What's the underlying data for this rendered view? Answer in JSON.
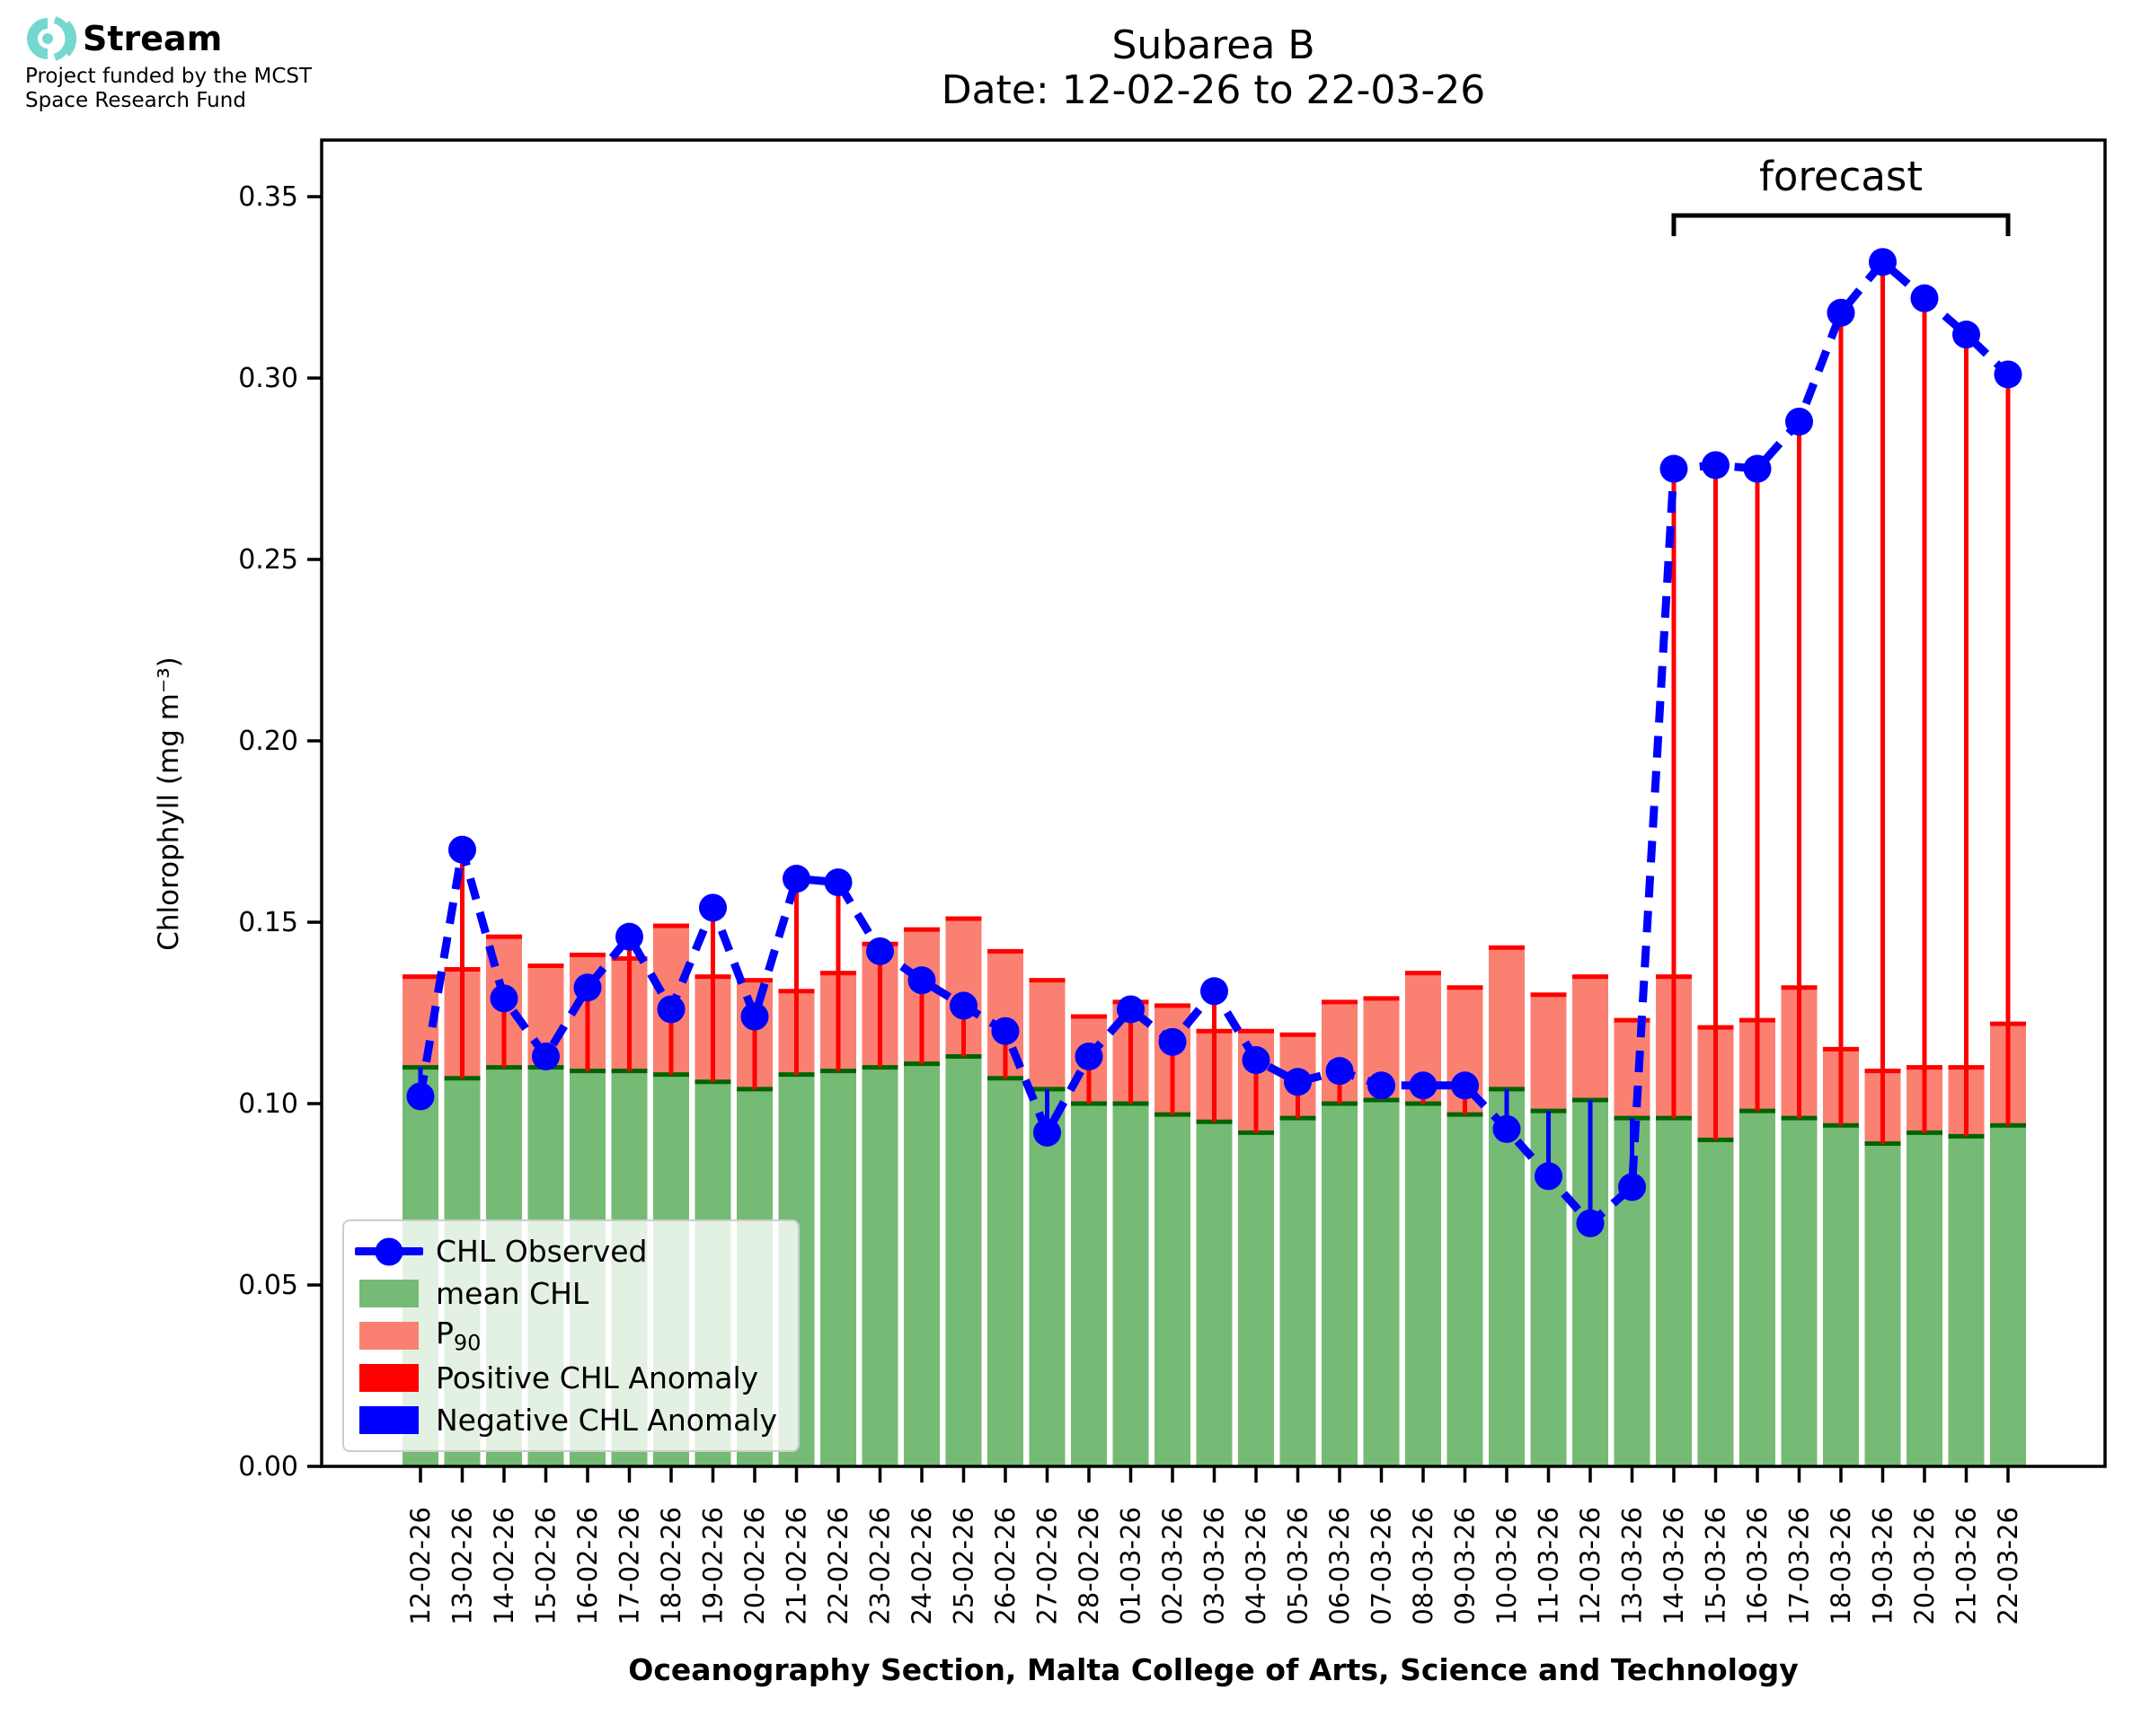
{
  "logo": {
    "brand": "Stream",
    "funding_line1": "Project funded by the MCST",
    "funding_line2": "Space Research Fund",
    "icon_color": "#74d8cf"
  },
  "title": {
    "line1": "Subarea B",
    "line2": "Date: 12-02-26 to 22-03-26"
  },
  "forecast_label": "forecast",
  "axes": {
    "ylabel": "Chlorophyll (mg m⁻³)",
    "xlabel": "Oceanography Section, Malta College of Arts, Science and Technology",
    "yticks": [
      "0.00",
      "0.05",
      "0.10",
      "0.15",
      "0.20",
      "0.25",
      "0.30",
      "0.35"
    ]
  },
  "legend": {
    "items": [
      {
        "label": "CHL Observed",
        "type": "line-dot",
        "color": "#0000ff"
      },
      {
        "label": "mean CHL",
        "type": "patch",
        "color": "#75ba75"
      },
      {
        "label": "P",
        "sub": "90",
        "type": "patch",
        "color": "#fa8072"
      },
      {
        "label": "Positive CHL Anomaly",
        "type": "patch",
        "color": "#ff0000"
      },
      {
        "label": "Negative CHL Anomaly",
        "type": "patch",
        "color": "#0000ff"
      }
    ]
  },
  "chart_data": {
    "type": "bar",
    "title": "Subarea B — Date: 12-02-26 to 22-03-26",
    "xlabel": "Oceanography Section, Malta College of Arts, Science and Technology",
    "ylabel": "Chlorophyll (mg m-3)",
    "ylim": [
      0,
      0.3656
    ],
    "grid": false,
    "legend_position": "lower-left",
    "categories": [
      "12-02-26",
      "13-02-26",
      "14-02-26",
      "15-02-26",
      "16-02-26",
      "17-02-26",
      "18-02-26",
      "19-02-26",
      "20-02-26",
      "21-02-26",
      "22-02-26",
      "23-02-26",
      "24-02-26",
      "25-02-26",
      "26-02-26",
      "27-02-26",
      "28-02-26",
      "01-03-26",
      "02-03-26",
      "03-03-26",
      "04-03-26",
      "05-03-26",
      "06-03-26",
      "07-03-26",
      "08-03-26",
      "09-03-26",
      "10-03-26",
      "11-03-26",
      "12-03-26",
      "13-03-26",
      "14-03-26",
      "15-03-26",
      "16-03-26",
      "17-03-26",
      "18-03-26",
      "19-03-26",
      "20-03-26",
      "21-03-26",
      "22-03-26"
    ],
    "series": [
      {
        "name": "mean CHL",
        "type": "bar",
        "color": "#75ba75",
        "edge_color": "#006400",
        "values": [
          0.11,
          0.107,
          0.11,
          0.11,
          0.109,
          0.109,
          0.108,
          0.106,
          0.104,
          0.108,
          0.109,
          0.11,
          0.111,
          0.113,
          0.107,
          0.104,
          0.1,
          0.1,
          0.097,
          0.095,
          0.092,
          0.096,
          0.1,
          0.101,
          0.1,
          0.097,
          0.104,
          0.098,
          0.101,
          0.096,
          0.096,
          0.09,
          0.098,
          0.096,
          0.094,
          0.089,
          0.092,
          0.091,
          0.094
        ]
      },
      {
        "name": "P90",
        "type": "bar",
        "color": "#fa8072",
        "edge_color": "#ff0000",
        "values": [
          0.135,
          0.137,
          0.146,
          0.138,
          0.141,
          0.14,
          0.149,
          0.135,
          0.134,
          0.131,
          0.136,
          0.144,
          0.148,
          0.151,
          0.142,
          0.134,
          0.124,
          0.128,
          0.127,
          0.12,
          0.12,
          0.119,
          0.128,
          0.129,
          0.136,
          0.132,
          0.143,
          0.13,
          0.135,
          0.123,
          0.135,
          0.121,
          0.123,
          0.132,
          0.115,
          0.109,
          0.11,
          0.11,
          0.122
        ]
      },
      {
        "name": "CHL Observed",
        "type": "line-dashed-dots",
        "color": "#0000ff",
        "values": [
          0.102,
          0.17,
          0.129,
          0.113,
          0.132,
          0.146,
          0.126,
          0.154,
          0.124,
          0.162,
          0.161,
          0.142,
          0.134,
          0.127,
          0.12,
          0.092,
          0.113,
          0.126,
          0.117,
          0.131,
          0.112,
          0.106,
          0.109,
          0.105,
          0.105,
          0.105,
          0.093,
          0.08,
          0.067,
          0.077,
          0.275,
          0.276,
          0.275,
          0.288,
          0.318,
          0.332,
          0.322,
          0.312,
          0.301
        ]
      }
    ],
    "anomaly": {
      "positive_color": "#ff0000",
      "negative_color": "#0000ff",
      "note": "vertical line per category from mean CHL to CHL Observed; red if observed>mean, blue if observed<mean"
    },
    "forecast_span": {
      "start": "14-03-26",
      "end": "22-03-26"
    }
  }
}
